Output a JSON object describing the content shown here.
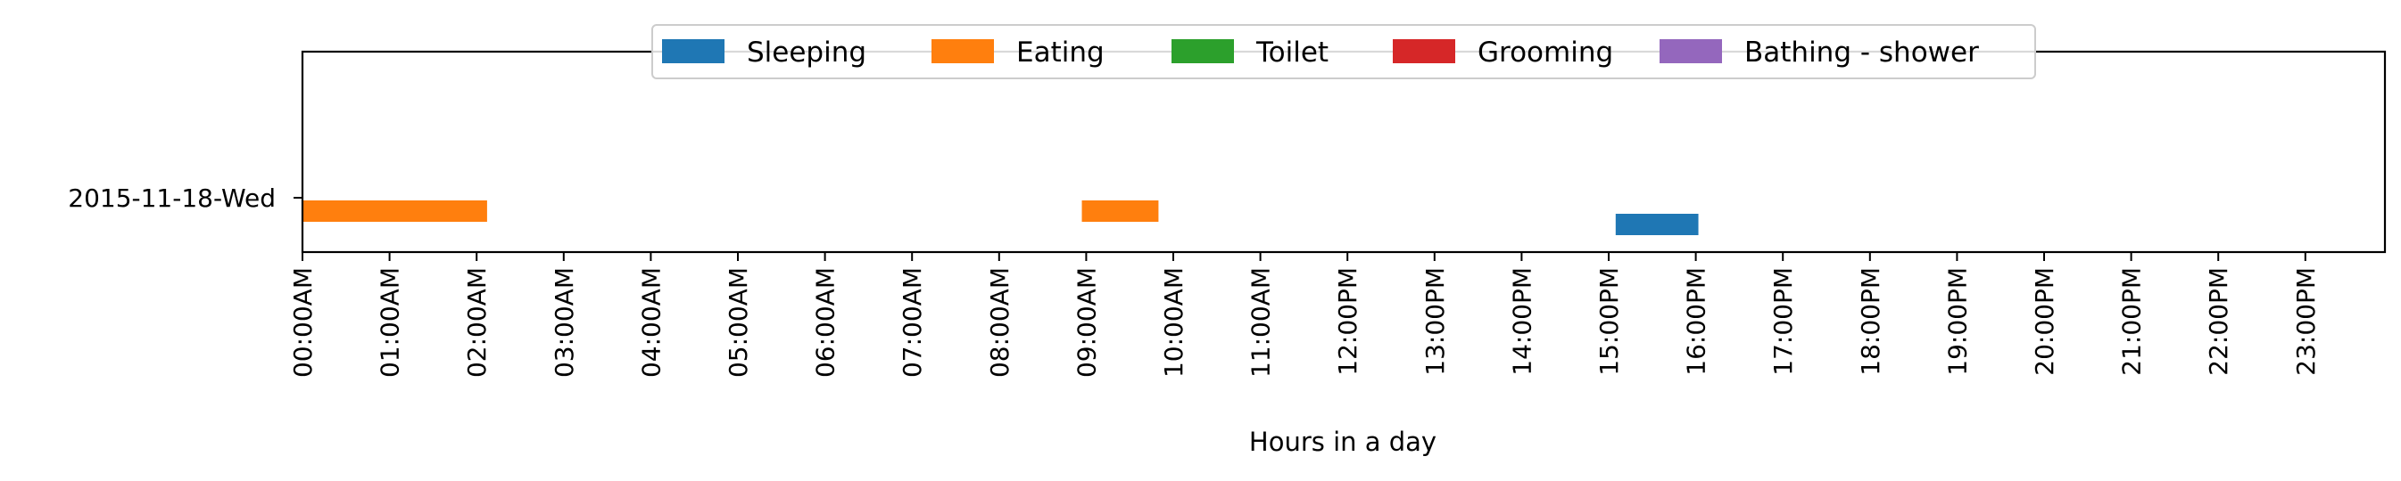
{
  "chart_data": {
    "type": "bar",
    "orientation": "horizontal-timeline",
    "title": "",
    "xlabel": "Hours in a day",
    "ylabel": "",
    "xlim": [
      0,
      24
    ],
    "grid": false,
    "legend_position": "top-center",
    "x_tick_labels": [
      "00:00AM",
      "01:00AM",
      "02:00AM",
      "03:00AM",
      "04:00AM",
      "05:00AM",
      "06:00AM",
      "07:00AM",
      "08:00AM",
      "09:00AM",
      "10:00AM",
      "11:00AM",
      "12:00PM",
      "13:00PM",
      "14:00PM",
      "15:00PM",
      "16:00PM",
      "17:00PM",
      "18:00PM",
      "19:00PM",
      "20:00PM",
      "21:00PM",
      "22:00PM",
      "23:00PM"
    ],
    "y_categories": [
      "2015-11-18-Wed"
    ],
    "series": [
      {
        "name": "Sleeping",
        "color": "#1f77b4",
        "intervals": [
          {
            "day": "2015-11-18-Wed",
            "start": 15.08,
            "end": 16.03
          }
        ]
      },
      {
        "name": "Eating",
        "color": "#ff7f0e",
        "intervals": [
          {
            "day": "2015-11-18-Wed",
            "start": 0.0,
            "end": 2.12
          },
          {
            "day": "2015-11-18-Wed",
            "start": 8.95,
            "end": 9.83
          }
        ]
      },
      {
        "name": "Toilet",
        "color": "#2ca02c",
        "intervals": []
      },
      {
        "name": "Grooming",
        "color": "#d62728",
        "intervals": []
      },
      {
        "name": "Bathing - shower",
        "color": "#9467bd",
        "intervals": []
      }
    ]
  }
}
